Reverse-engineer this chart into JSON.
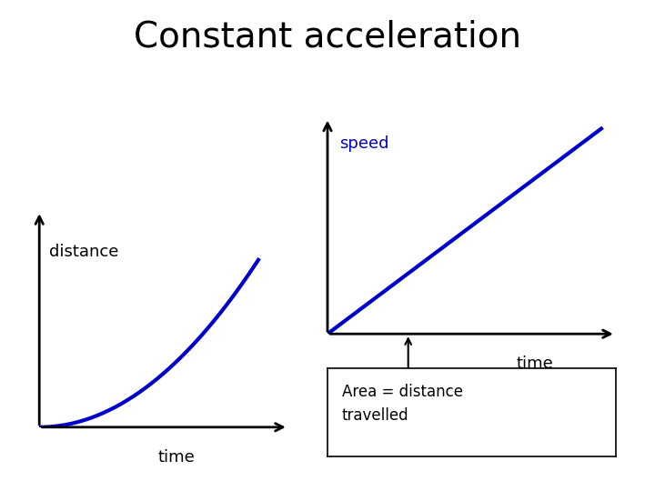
{
  "title": "Constant acceleration",
  "title_fontsize": 28,
  "title_color": "#000000",
  "background_color": "#ffffff",
  "curve_color": "#0000cc",
  "axis_color": "#000000",
  "label_color_left": "#000000",
  "label_color_right": "#0000cc",
  "left_xlabel": "time",
  "left_ylabel": "distance",
  "right_xlabel": "time",
  "right_ylabel": "speed",
  "annotation_text": "Area = distance\ntravelled",
  "annotation_fontsize": 12,
  "label_fontsize": 13
}
